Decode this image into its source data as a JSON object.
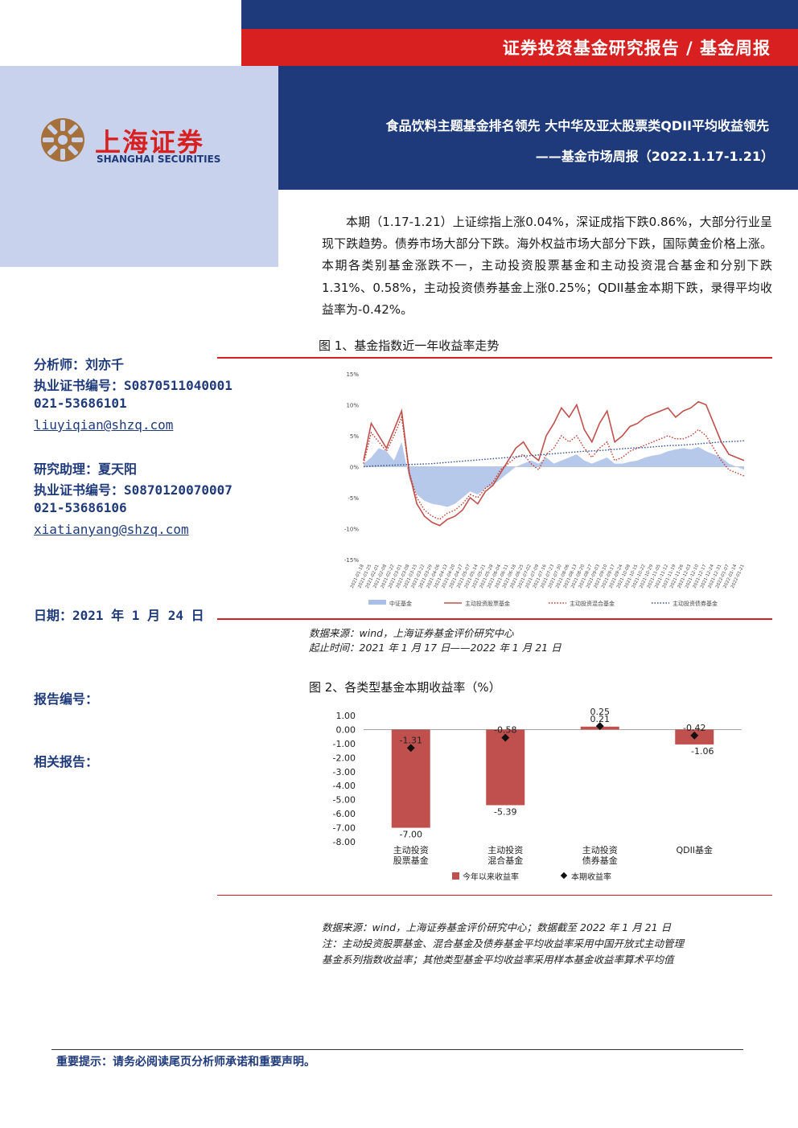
{
  "header": {
    "series_title": "证券投资基金研究报告 / 基金周报",
    "report_title": "食品饮料主题基金排名领先 大中华及亚太股票类QDII平均收益领先",
    "report_subtitle": "——基金市场周报（2022.1.17-1.21）"
  },
  "logo": {
    "name_cn": "上海证券",
    "name_en": "SHANGHAI SECURITIES"
  },
  "summary": "本期（1.17-1.21）上证综指上涨0.04%，深证成指下跌0.86%，大部分行业呈现下跌趋势。债券市场大部分下跌。海外权益市场大部分下跌，国际黄金价格上涨。本期各类别基金涨跌不一，主动投资股票基金和主动投资混合基金和分别下跌 1.31%、0.58%，主动投资债券基金上涨0.25%；QDII基金本期下跌，录得平均收益率为-0.42%。",
  "sidebar": {
    "analyst": "分析师：刘亦千",
    "analyst_cert": "执业证书编号：S0870511040001",
    "analyst_phone": "021-53686101",
    "analyst_email": "liuyiqian@shzq.com",
    "assistant": "研究助理：夏天阳",
    "assistant_cert": "执业证书编号：S0870120070007",
    "assistant_phone": "021-53686106",
    "assistant_email": "xiatianyang@shzq.com",
    "date": "日期：2021 年 1 月 24 日",
    "report_no": "报告编号：",
    "related": "相关报告："
  },
  "figure1": {
    "title": "图 1、基金指数近一年收益率走势",
    "source": "数据来源：wind，上海证券基金评价研究中心",
    "period": "起止时间：2021 年 1 月 17 日——2022 年 1 月 21 日"
  },
  "figure2": {
    "title": "图 2、各类型基金本期收益率（%）",
    "source": "数据来源：wind，上海证券基金评价研究中心；数据截至 2022 年 1 月 21 日",
    "note1": "注：主动投资股票基金、混合基金及债券基金平均收益率采用中国开放式主动管理",
    "note2": "基金系列指数收益率；其他类型基金平均收益率采用样本基金收益率算术平均值"
  },
  "disclaimer": "重要提示：请务必阅读尾页分析师承诺和重要声明。",
  "colors": {
    "navy": "#1f3a7a",
    "red": "#d7201f",
    "light_blue": "#c8d2ec",
    "bar_red": "#c0504d"
  },
  "chart_data": [
    {
      "type": "line",
      "ylim": [
        -15,
        15
      ],
      "y_tick_labels": [
        "15%",
        "10%",
        "5%",
        "0%",
        "-5%",
        "-10%",
        "-15%"
      ],
      "x_tick_labels": [
        "2021-01-18",
        "2021-01-25",
        "2021-02-01",
        "2021-02-08",
        "2021-02-22",
        "2021-03-01",
        "2021-03-08",
        "2021-03-15",
        "2021-03-22",
        "2021-03-29",
        "2021-04-06",
        "2021-04-13",
        "2021-04-20",
        "2021-04-27",
        "2021-05-07",
        "2021-05-14",
        "2021-05-21",
        "2021-05-28",
        "2021-06-04",
        "2021-06-11",
        "2021-06-18",
        "2021-06-25",
        "2021-07-02",
        "2021-07-09",
        "2021-07-16",
        "2021-07-23",
        "2021-07-30",
        "2021-08-06",
        "2021-08-13",
        "2021-08-20",
        "2021-08-27",
        "2021-09-03",
        "2021-09-10",
        "2021-09-17",
        "2021-09-24",
        "2021-10-08",
        "2021-10-15",
        "2021-10-22",
        "2021-10-29",
        "2021-11-05",
        "2021-11-12",
        "2021-11-19",
        "2021-11-26",
        "2021-12-03",
        "2021-12-10",
        "2021-12-17",
        "2021-12-24",
        "2021-12-31",
        "2022-01-07",
        "2022-01-14",
        "2022-01-21"
      ],
      "series": [
        {
          "name": "中证基金",
          "style": "area",
          "values": [
            0.5,
            1.5,
            3.0,
            2.5,
            1.0,
            4.0,
            -2.0,
            -4.5,
            -5.5,
            -6.0,
            -6.2,
            -6.5,
            -6.0,
            -5.0,
            -4.0,
            -4.5,
            -3.5,
            -3.0,
            -2.0,
            -1.0,
            0.0,
            0.5,
            1.0,
            0.5,
            1.5,
            0.5,
            1.0,
            1.5,
            2.0,
            1.0,
            0.5,
            1.0,
            1.5,
            0.5,
            0.5,
            0.8,
            1.0,
            1.5,
            1.8,
            2.0,
            2.5,
            2.8,
            3.0,
            2.8,
            3.2,
            2.5,
            2.0,
            1.5,
            0.5,
            0.0,
            -0.5
          ]
        },
        {
          "name": "主动投资股票基金",
          "style": "solid",
          "values": [
            1.0,
            7.0,
            5.0,
            3.0,
            6.0,
            9.0,
            -1.0,
            -6.0,
            -8.0,
            -9.0,
            -9.5,
            -8.5,
            -8.0,
            -7.0,
            -5.0,
            -6.0,
            -4.0,
            -3.0,
            -1.0,
            1.0,
            3.0,
            4.0,
            2.0,
            1.0,
            5.0,
            7.0,
            9.5,
            8.0,
            10.0,
            6.0,
            4.0,
            7.0,
            9.0,
            4.0,
            5.0,
            6.5,
            7.0,
            8.0,
            8.5,
            9.0,
            9.5,
            8.0,
            9.0,
            9.5,
            10.5,
            10.0,
            7.0,
            4.0,
            2.0,
            1.5,
            1.0
          ]
        },
        {
          "name": "主动投资混合基金",
          "style": "dotted",
          "values": [
            0.5,
            5.5,
            4.0,
            2.5,
            5.0,
            8.0,
            -1.0,
            -5.0,
            -7.0,
            -8.0,
            -8.5,
            -7.5,
            -7.0,
            -6.0,
            -4.5,
            -5.0,
            -3.5,
            -2.5,
            -0.5,
            0.5,
            1.5,
            2.0,
            0.5,
            -0.5,
            2.0,
            3.0,
            5.0,
            4.0,
            5.0,
            3.0,
            1.5,
            3.0,
            4.0,
            1.0,
            1.5,
            2.5,
            3.0,
            3.5,
            4.0,
            4.5,
            5.0,
            4.5,
            4.5,
            5.0,
            6.0,
            5.0,
            3.0,
            1.0,
            -0.5,
            -1.0,
            -1.5
          ]
        },
        {
          "name": "主动投资债券基金",
          "style": "dotted",
          "values": [
            0.0,
            0.1,
            0.15,
            0.2,
            0.25,
            0.3,
            0.35,
            0.4,
            0.45,
            0.5,
            0.6,
            0.7,
            0.8,
            0.9,
            1.0,
            1.1,
            1.2,
            1.3,
            1.4,
            1.5,
            1.6,
            1.7,
            1.8,
            1.9,
            2.0,
            2.1,
            2.2,
            2.3,
            2.4,
            2.5,
            2.55,
            2.6,
            2.7,
            2.8,
            2.9,
            3.0,
            3.05,
            3.1,
            3.2,
            3.3,
            3.4,
            3.45,
            3.5,
            3.6,
            3.7,
            3.8,
            3.9,
            4.0,
            4.05,
            4.1,
            4.2
          ]
        }
      ]
    },
    {
      "type": "bar",
      "ylim": [
        -8,
        1
      ],
      "y_tick_labels": [
        "1.00",
        "0.00",
        "-1.00",
        "-2.00",
        "-3.00",
        "-4.00",
        "-5.00",
        "-6.00",
        "-7.00",
        "-8.00"
      ],
      "categories": [
        "主动投资股票基金",
        "主动投资混合基金",
        "主动投资债券基金",
        "QDII基金"
      ],
      "category_lines": [
        [
          "主动投资",
          "股票基金"
        ],
        [
          "主动投资",
          "混合基金"
        ],
        [
          "主动投资",
          "债券基金"
        ],
        [
          "QDII基金",
          ""
        ]
      ],
      "series": [
        {
          "name": "今年以来收益率",
          "style": "bar",
          "values": [
            -7.0,
            -5.39,
            0.21,
            -1.06
          ],
          "labels": [
            "-7.00",
            "-5.39",
            "0.21",
            "-1.06"
          ]
        },
        {
          "name": "本期收益率",
          "style": "marker",
          "values": [
            -1.31,
            -0.58,
            0.25,
            -0.42
          ],
          "labels": [
            "-1.31",
            "-0.58",
            "0.25",
            "-0.42"
          ]
        }
      ]
    }
  ]
}
